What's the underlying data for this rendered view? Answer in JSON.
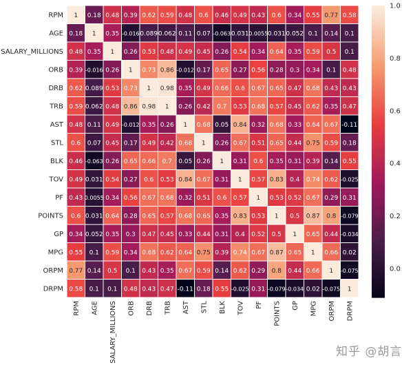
{
  "chart_data": {
    "type": "heatmap",
    "labels": [
      "RPM",
      "AGE",
      "SALARY_MILLIONS",
      "ORB",
      "DRB",
      "TRB",
      "AST",
      "STL",
      "BLK",
      "TOV",
      "PF",
      "POINTS",
      "GP",
      "MPG",
      "ORPM",
      "DRPM"
    ],
    "matrix": [
      [
        1,
        0.18,
        0.48,
        0.39,
        0.62,
        0.59,
        0.48,
        0.6,
        0.46,
        0.49,
        0.43,
        0.6,
        0.34,
        0.55,
        0.77,
        0.58
      ],
      [
        0.18,
        1,
        0.35,
        -0.016,
        0.089,
        0.062,
        0.11,
        0.07,
        -0.063,
        0.031,
        0.0055,
        0.031,
        0.052,
        0.1,
        0.14,
        0.1
      ],
      [
        0.48,
        0.35,
        1,
        0.26,
        0.53,
        0.48,
        0.49,
        0.45,
        0.26,
        0.54,
        0.34,
        0.64,
        0.35,
        0.59,
        0.5,
        0.1
      ],
      [
        0.39,
        -0.016,
        0.26,
        1,
        0.73,
        0.86,
        -0.012,
        0.17,
        0.65,
        0.27,
        0.56,
        0.28,
        0.3,
        0.34,
        0.1,
        0.48
      ],
      [
        0.62,
        0.089,
        0.53,
        0.73,
        1,
        0.98,
        0.35,
        0.49,
        0.66,
        0.6,
        0.67,
        0.65,
        0.47,
        0.68,
        0.43,
        0.43
      ],
      [
        0.59,
        0.062,
        0.48,
        0.86,
        0.98,
        1,
        0.26,
        0.42,
        0.7,
        0.53,
        0.68,
        0.57,
        0.45,
        0.62,
        0.35,
        0.47
      ],
      [
        0.48,
        0.11,
        0.49,
        -0.012,
        0.35,
        0.26,
        1,
        0.68,
        0.05,
        0.84,
        0.32,
        0.68,
        0.33,
        0.64,
        0.67,
        -0.11
      ],
      [
        0.6,
        0.07,
        0.45,
        0.17,
        0.49,
        0.42,
        0.68,
        1,
        0.26,
        0.67,
        0.51,
        0.65,
        0.44,
        0.75,
        0.59,
        0.18
      ],
      [
        0.46,
        -0.063,
        0.26,
        0.65,
        0.66,
        0.7,
        0.05,
        0.26,
        1,
        0.31,
        0.6,
        0.35,
        0.31,
        0.39,
        0.14,
        0.55
      ],
      [
        0.49,
        0.031,
        0.54,
        0.27,
        0.6,
        0.53,
        0.84,
        0.67,
        0.31,
        1,
        0.57,
        0.83,
        0.4,
        0.74,
        0.62,
        -0.025
      ],
      [
        0.43,
        0.0055,
        0.34,
        0.56,
        0.67,
        0.68,
        0.32,
        0.51,
        0.6,
        0.57,
        1,
        0.53,
        0.52,
        0.67,
        0.29,
        0.31
      ],
      [
        0.6,
        0.031,
        0.64,
        0.28,
        0.65,
        0.57,
        0.68,
        0.65,
        0.35,
        0.83,
        0.53,
        1,
        0.5,
        0.87,
        0.8,
        -0.079
      ],
      [
        0.34,
        0.052,
        0.35,
        0.3,
        0.47,
        0.45,
        0.33,
        0.44,
        0.31,
        0.4,
        0.52,
        0.5,
        1,
        0.65,
        0.44,
        -0.034
      ],
      [
        0.55,
        0.1,
        0.59,
        0.34,
        0.68,
        0.62,
        0.64,
        0.75,
        0.39,
        0.74,
        0.67,
        0.87,
        0.65,
        1,
        0.66,
        0.02
      ],
      [
        0.77,
        0.14,
        0.5,
        0.1,
        0.43,
        0.35,
        0.67,
        0.59,
        0.14,
        0.62,
        0.29,
        0.8,
        0.44,
        0.66,
        1,
        -0.075
      ],
      [
        0.58,
        0.1,
        0.1,
        0.48,
        0.43,
        0.47,
        -0.11,
        0.18,
        0.55,
        -0.025,
        0.31,
        -0.079,
        -0.034,
        0.02,
        -0.075,
        1
      ]
    ],
    "colormap": "rocket",
    "vmin": -0.11,
    "vmax": 1,
    "colorbar_ticks": [
      "1.0",
      "0.8",
      "0.6",
      "0.4",
      "0.2",
      "0.0"
    ],
    "annotated": true,
    "cell_border_color": "#ffffff"
  },
  "watermark": "知乎 @胡言"
}
